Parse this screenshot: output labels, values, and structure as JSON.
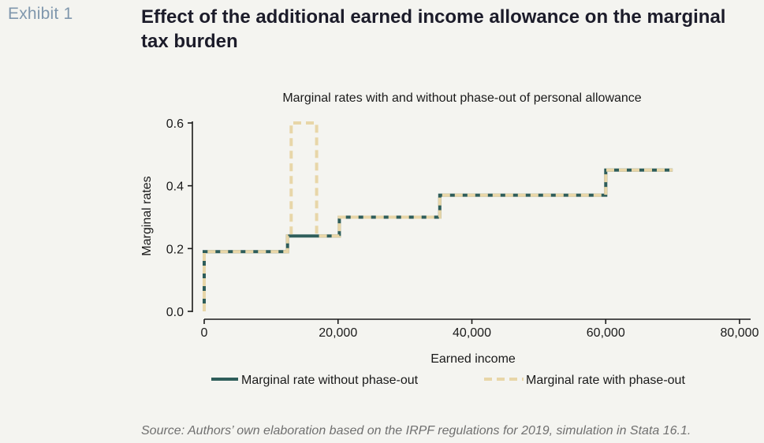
{
  "header": {
    "exhibit_label": "Exhibit 1",
    "title": "Effect of the additional earned income allowance on the marginal tax burden"
  },
  "source_note": "Source: Authors’ own elaboration based on the IRPF regulations for 2019, simulation in Stata 16.1.",
  "chart_data": {
    "type": "line",
    "title": "Marginal rates with and without phase-out of personal allowance",
    "xlabel": "Earned income",
    "ylabel": "Marginal rates",
    "xlim": [
      0,
      80000
    ],
    "ylim": [
      0,
      0.6
    ],
    "xticks": [
      0,
      20000,
      40000,
      60000,
      80000
    ],
    "xtick_labels": [
      "0",
      "20,000",
      "40,000",
      "60,000",
      "80,000"
    ],
    "yticks": [
      0,
      0.2,
      0.4,
      0.6
    ],
    "ytick_labels": [
      "0.0",
      "0.2",
      "0.4",
      "0.6"
    ],
    "grid": false,
    "legend_position": "bottom",
    "series": [
      {
        "name": "Marginal rate without phase-out",
        "color": "#2e5d5a",
        "style": "solid",
        "points": [
          [
            0,
            0
          ],
          [
            0,
            0.19
          ],
          [
            12450,
            0.19
          ],
          [
            12450,
            0.24
          ],
          [
            20200,
            0.24
          ],
          [
            20200,
            0.3
          ],
          [
            35200,
            0.3
          ],
          [
            35200,
            0.37
          ],
          [
            60000,
            0.37
          ],
          [
            60000,
            0.45
          ],
          [
            70000,
            0.45
          ]
        ]
      },
      {
        "name": "Marginal rate with phase-out",
        "color": "#e8d6a8",
        "style": "dashed",
        "points": [
          [
            0,
            0
          ],
          [
            0,
            0.19
          ],
          [
            12450,
            0.19
          ],
          [
            12450,
            0.24
          ],
          [
            13000,
            0.24
          ],
          [
            13000,
            0.6
          ],
          [
            16800,
            0.6
          ],
          [
            16800,
            0.24
          ],
          [
            20200,
            0.24
          ],
          [
            20200,
            0.3
          ],
          [
            35200,
            0.3
          ],
          [
            35200,
            0.37
          ],
          [
            60000,
            0.37
          ],
          [
            60000,
            0.45
          ],
          [
            70000,
            0.45
          ]
        ]
      }
    ]
  }
}
